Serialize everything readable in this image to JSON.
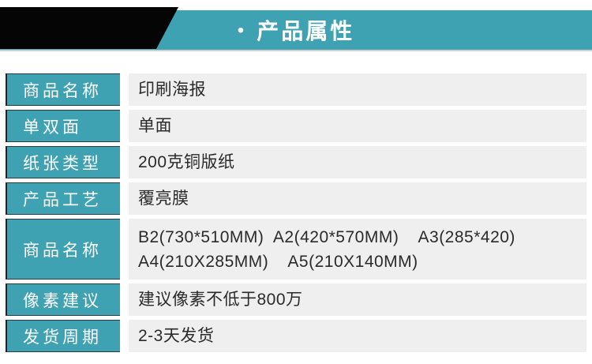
{
  "header": {
    "bullet": "•",
    "title": "产品属性"
  },
  "colors": {
    "accent_teal": "#3fa2b3",
    "ribbon_black": "#050505",
    "value_cell_bg": "#efefef",
    "label_text": "#ffffff",
    "value_text": "#2a2a2a"
  },
  "table": {
    "rows": [
      {
        "label": "商品名称",
        "value": "印刷海报"
      },
      {
        "label": "单双面",
        "value": "单面"
      },
      {
        "label": "纸张类型",
        "value": "200克铜版纸"
      },
      {
        "label": "产品工艺",
        "value": "覆亮膜"
      },
      {
        "label": "商品名称",
        "value": "B2(730*510MM)  A2(420*570MM)    A3(285*420)\nA4(210X285MM)    A5(210X140MM)"
      },
      {
        "label": "像素建议",
        "value": "建议像素不低于800万"
      },
      {
        "label": "发货周期",
        "value": "2-3天发货"
      }
    ]
  }
}
